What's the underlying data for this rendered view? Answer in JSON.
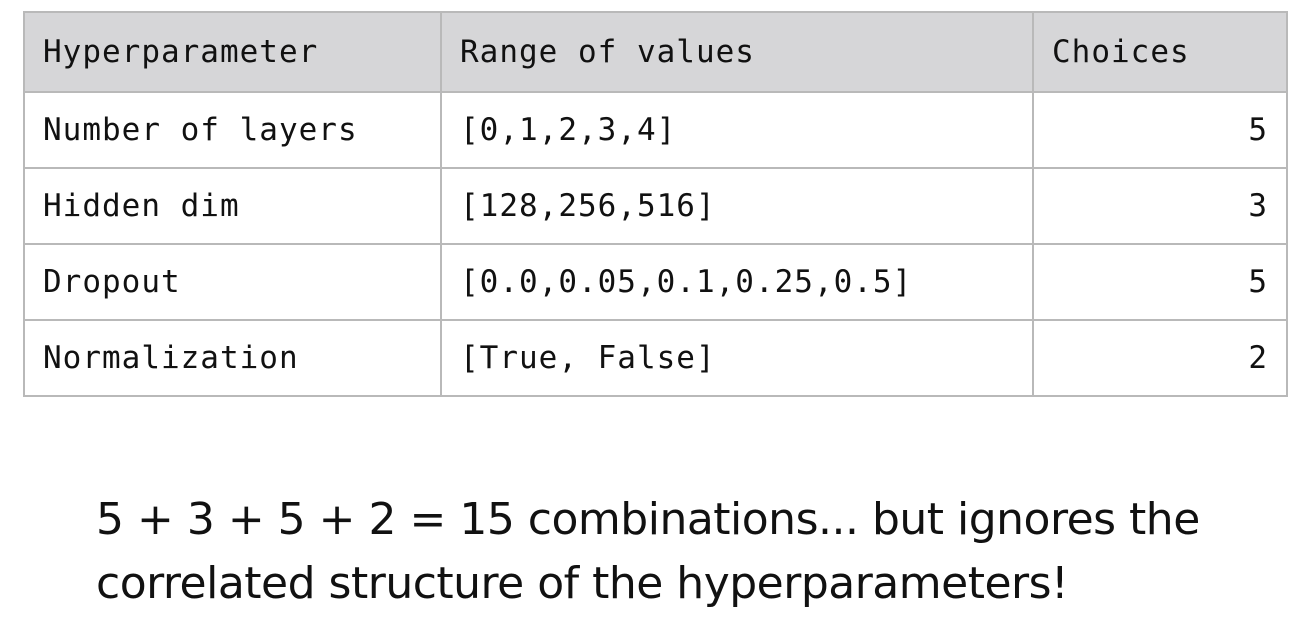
{
  "table": {
    "headers": [
      "Hyperparameter",
      "Range of values",
      "Choices"
    ],
    "rows": [
      {
        "name": "Number of layers",
        "range": "[0,1,2,3,4]",
        "choices": "5"
      },
      {
        "name": "Hidden dim",
        "range": "[128,256,516]",
        "choices": "3"
      },
      {
        "name": "Dropout",
        "range": "[0.0,0.05,0.1,0.25,0.5]",
        "choices": "5"
      },
      {
        "name": "Normalization",
        "range": "[True, False]",
        "choices": "2"
      }
    ]
  },
  "caption": {
    "line1": "5 + 3 + 5 + 2 = 15 combinations... but ignores the",
    "line2": "correlated structure of the hyperparameters!"
  }
}
